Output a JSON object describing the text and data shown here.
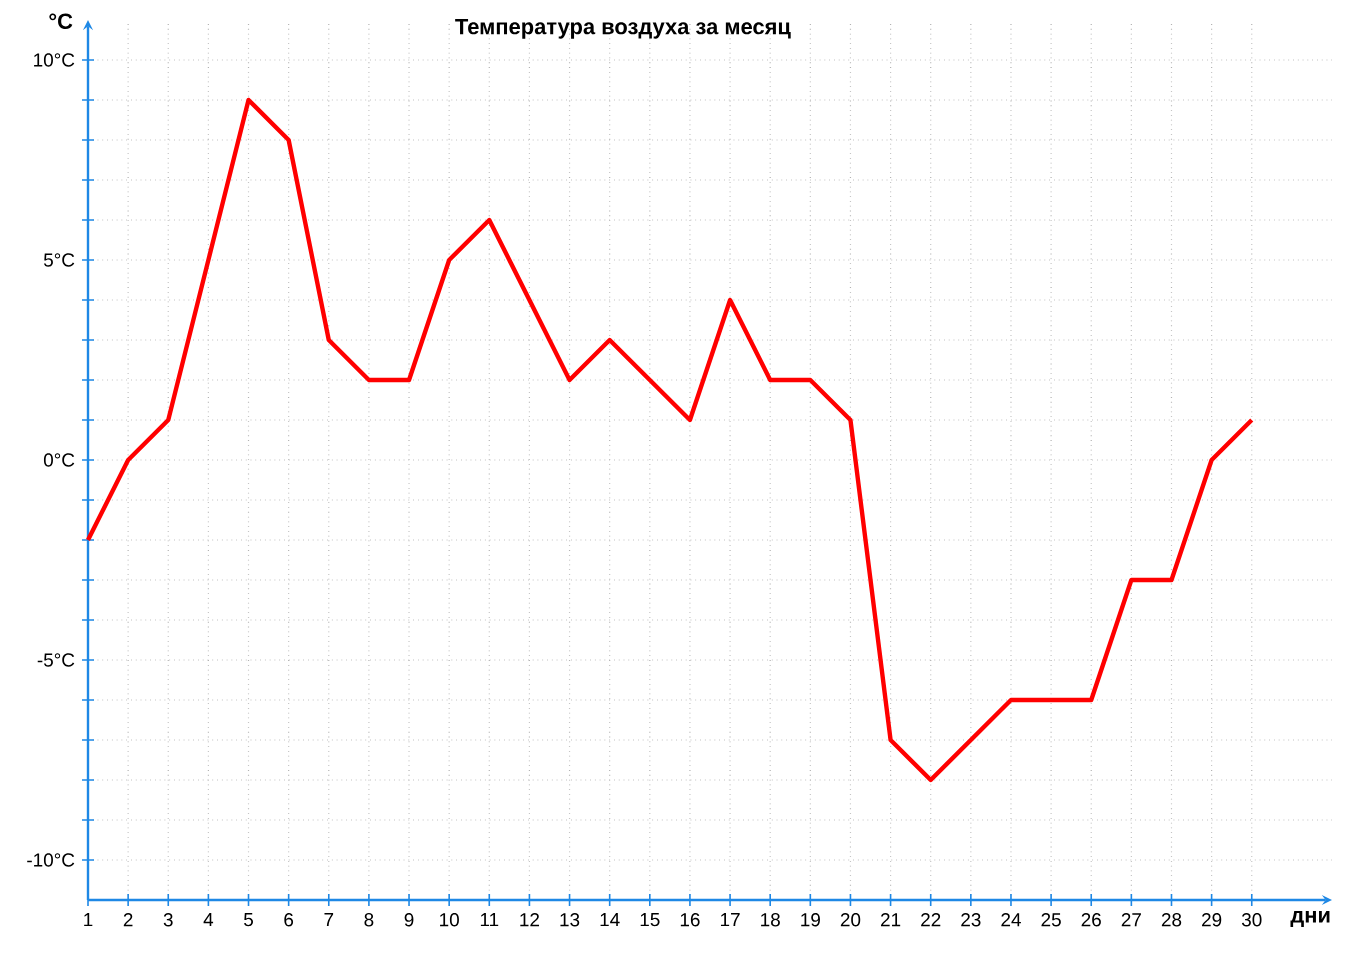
{
  "chart_data": {
    "type": "line",
    "title": "Температура воздуха за месяц",
    "xlabel": "дни",
    "ylabel": "°C",
    "x": [
      1,
      2,
      3,
      4,
      5,
      6,
      7,
      8,
      9,
      10,
      11,
      12,
      13,
      14,
      15,
      16,
      17,
      18,
      19,
      20,
      21,
      22,
      23,
      24,
      25,
      26,
      27,
      28,
      29,
      30
    ],
    "series": [
      {
        "color": "#ff0000",
        "values": [
          -2,
          0,
          1,
          5,
          9,
          8,
          3,
          2,
          2,
          5,
          6,
          4,
          2,
          3,
          2,
          1,
          4,
          2,
          2,
          1,
          -7,
          -8,
          -7,
          -6,
          -6,
          -6,
          -3,
          -3,
          0,
          1
        ]
      }
    ],
    "xlim": [
      1,
      32
    ],
    "ylim": [
      -11,
      11
    ],
    "xticks": [
      1,
      2,
      3,
      4,
      5,
      6,
      7,
      8,
      9,
      10,
      11,
      12,
      13,
      14,
      15,
      16,
      17,
      18,
      19,
      20,
      21,
      22,
      23,
      24,
      25,
      26,
      27,
      28,
      29,
      30
    ],
    "yticks": [
      {
        "value": -10,
        "label": "-10°C"
      },
      {
        "value": -9,
        "label": null
      },
      {
        "value": -8,
        "label": null
      },
      {
        "value": -7,
        "label": null
      },
      {
        "value": -6,
        "label": null
      },
      {
        "value": -5,
        "label": "-5°C"
      },
      {
        "value": -4,
        "label": null
      },
      {
        "value": -3,
        "label": null
      },
      {
        "value": -2,
        "label": null
      },
      {
        "value": -1,
        "label": null
      },
      {
        "value": 0,
        "label": "0°C"
      },
      {
        "value": 1,
        "label": null
      },
      {
        "value": 2,
        "label": null
      },
      {
        "value": 3,
        "label": null
      },
      {
        "value": 4,
        "label": null
      },
      {
        "value": 5,
        "label": "5°C"
      },
      {
        "value": 6,
        "label": null
      },
      {
        "value": 7,
        "label": null
      },
      {
        "value": 8,
        "label": null
      },
      {
        "value": 9,
        "label": null
      },
      {
        "value": 10,
        "label": "10°C"
      }
    ],
    "grid": true,
    "marker": "none",
    "line_style": "solid"
  }
}
